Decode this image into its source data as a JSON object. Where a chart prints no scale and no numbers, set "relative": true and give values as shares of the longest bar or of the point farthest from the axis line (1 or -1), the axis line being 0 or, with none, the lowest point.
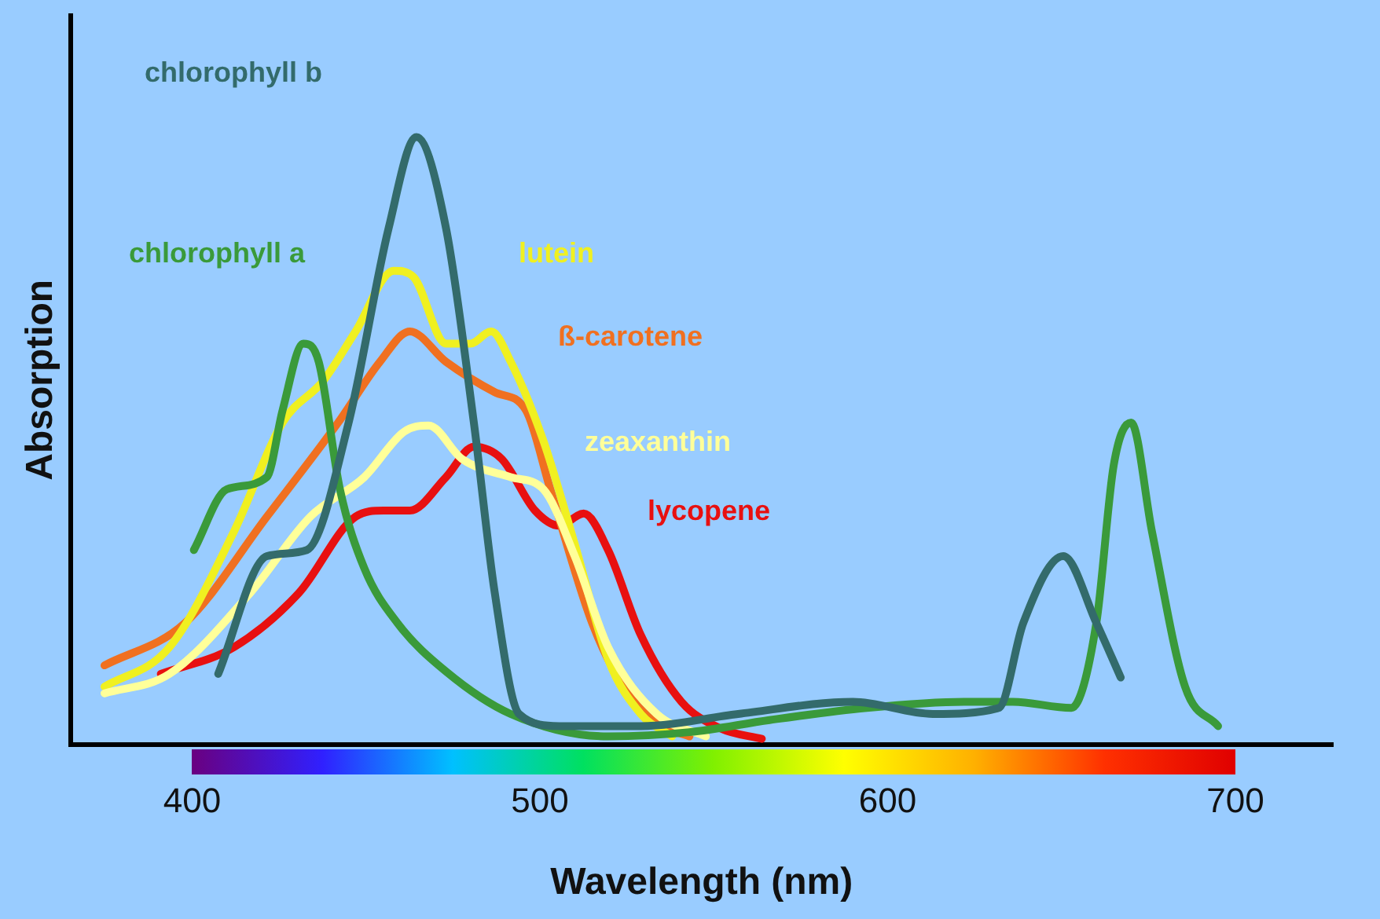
{
  "chart_data": {
    "type": "line",
    "xlabel": "Wavelength (nm)",
    "ylabel": "Absorption",
    "relative": true,
    "xlim": [
      365,
      728
    ],
    "xticks": [
      400,
      500,
      600,
      700
    ],
    "grid": false,
    "legend": false,
    "marker": "none",
    "line_style": "solid",
    "series": [
      {
        "name": "chlorophyll b",
        "color": "#336b6b",
        "x": [
          407.5,
          421.5,
          433,
          445,
          456.5,
          464.5,
          473,
          481,
          487,
          494,
          505.6,
          529,
          557,
          590,
          613,
          632,
          639,
          650.5,
          660,
          667
        ],
        "values": [
          0.116,
          0.31,
          0.32,
          0.53,
          0.85,
          1,
          0.85,
          0.53,
          0.25,
          0.05,
          0.03,
          0.03,
          0.05,
          0.07,
          0.05,
          0.06,
          0.2,
          0.31,
          0.2,
          0.11
        ]
      },
      {
        "name": "chlorophyll a",
        "color": "#3a9a3a",
        "x": [
          400.5,
          410,
          421.5,
          426,
          432,
          436.4,
          442.5,
          449.5,
          459,
          473,
          491.6,
          519.6,
          543,
          566,
          594,
          622,
          636,
          652.8,
          660,
          665,
          670,
          676,
          685.5,
          695
        ],
        "values": [
          0.32,
          0.42,
          0.44,
          0.55,
          0.66,
          0.63,
          0.42,
          0.29,
          0.2,
          0.12,
          0.05,
          0.013,
          0.02,
          0.04,
          0.06,
          0.07,
          0.07,
          0.06,
          0.2,
          0.46,
          0.53,
          0.35,
          0.095,
          0.03
        ]
      },
      {
        "name": "zeaxanthin",
        "color": "#ffff99",
        "x": [
          374.8,
          393.5,
          416.8,
          434,
          449.5,
          461,
          468,
          477.6,
          491.6,
          501,
          510,
          519.6,
          533.6,
          547.7
        ],
        "values": [
          0.084,
          0.116,
          0.25,
          0.375,
          0.44,
          0.515,
          0.525,
          0.47,
          0.44,
          0.42,
          0.31,
          0.16,
          0.05,
          0.013
        ]
      },
      {
        "name": "lutein",
        "color": "#f0f020",
        "x": [
          374.8,
          393.5,
          412,
          426,
          437.9,
          447,
          458,
          463.6,
          473,
          480,
          486,
          491.6,
          501,
          510,
          519.6,
          529,
          538
        ],
        "values": [
          0.095,
          0.16,
          0.35,
          0.53,
          0.6,
          0.68,
          0.78,
          0.77,
          0.66,
          0.66,
          0.68,
          0.63,
          0.5,
          0.33,
          0.14,
          0.05,
          0.013
        ]
      },
      {
        "name": "ß-carotene",
        "color": "#f07020",
        "x": [
          374.8,
          398,
          421.5,
          442,
          454,
          462.6,
          473,
          487,
          496,
          503,
          515,
          524,
          533.6,
          543
        ],
        "values": [
          0.13,
          0.2,
          0.375,
          0.53,
          0.63,
          0.68,
          0.63,
          0.58,
          0.55,
          0.42,
          0.2,
          0.095,
          0.034,
          0.013
        ]
      },
      {
        "name": "lycopene",
        "color": "#e81010",
        "x": [
          391,
          412,
          430.8,
          447,
          455,
          462.6,
          473,
          481,
          489,
          498.6,
          505.6,
          512.6,
          519.6,
          529,
          540.7,
          552,
          563.8
        ],
        "values": [
          0.116,
          0.16,
          0.25,
          0.375,
          0.385,
          0.385,
          0.44,
          0.49,
          0.47,
          0.385,
          0.36,
          0.38,
          0.32,
          0.18,
          0.07,
          0.026,
          0.009
        ]
      }
    ]
  }
}
